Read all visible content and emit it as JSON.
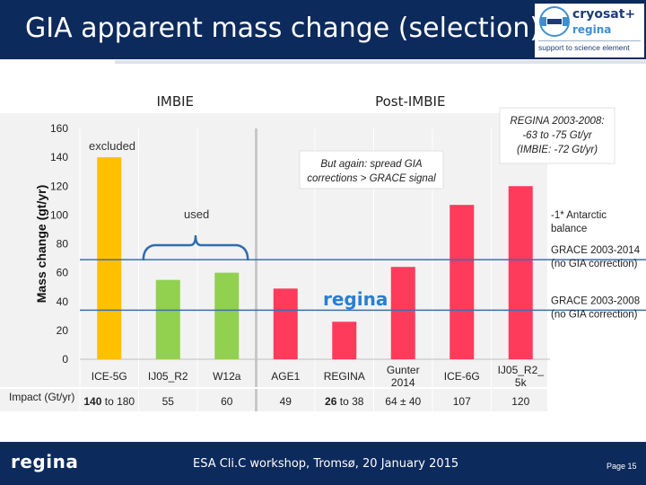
{
  "slide": {
    "title": "GIA apparent mass change (selection)",
    "logo": {
      "name": "cryosat+",
      "sub": "regina",
      "tagline": "support to science element"
    },
    "footer": {
      "logo": "regina",
      "text": "ESA Cli.C workshop, Tromsø, 20 January 2015",
      "page": "Page 15"
    }
  },
  "chart_data": {
    "type": "bar",
    "ylabel": "Mass change (gt/yr)",
    "ylim": [
      0,
      160
    ],
    "yticks": [
      0,
      20,
      40,
      60,
      80,
      100,
      120,
      140,
      160
    ],
    "sections": [
      {
        "label": "IMBIE",
        "from": 0,
        "to": 3
      },
      {
        "label": "Post-IMBIE",
        "from": 3,
        "to": 8
      }
    ],
    "categories": [
      {
        "label": "ICE-5G",
        "value": 140,
        "impact": "140 to 180",
        "group": "excluded",
        "color": "#ffc000"
      },
      {
        "label": "IJ05_R2",
        "value": 55,
        "impact": "55",
        "group": "used",
        "color": "#92d050"
      },
      {
        "label": "W12a",
        "value": 60,
        "impact": "60",
        "group": "used",
        "color": "#92d050"
      },
      {
        "label": "AGE1",
        "value": 49,
        "impact": "49",
        "group": "post",
        "color": "#ff3b5c"
      },
      {
        "label": "REGINA",
        "value": 26,
        "impact": "26 to 38",
        "group": "post",
        "color": "#ff3b5c"
      },
      {
        "label": "Gunter 2014",
        "label_lines": [
          "Gunter",
          "2014"
        ],
        "value": 64,
        "impact": "64 ± 40",
        "group": "post",
        "color": "#ff3b5c"
      },
      {
        "label": "ICE-6G",
        "value": 107,
        "impact": "107",
        "group": "post",
        "color": "#ff3b5c"
      },
      {
        "label": "IJ05_R2_5k",
        "label_lines": [
          "IJ05_R2_",
          "5k"
        ],
        "value": 120,
        "impact": "120",
        "group": "post",
        "color": "#ff3b5c"
      }
    ],
    "impact_label": "Impact (Gt/yr)",
    "reference_lines": [
      {
        "value": 69,
        "label_lines": [
          "GRACE 2003-2014",
          "(no GIA correction)"
        ],
        "color": "#3a6fb0"
      },
      {
        "value": 34,
        "label_lines": [
          "GRACE 2003-2008",
          "(no GIA correction)"
        ],
        "color": "#3a6fb0"
      }
    ],
    "annotations": {
      "excluded": "excluded",
      "used": "used",
      "spread": [
        "But again: spread GIA",
        "corrections > GRACE signal"
      ],
      "regina_box": [
        "REGINA 2003-2008:",
        "-63 to -75 Gt/yr",
        "(IMBIE: -72 Gt/yr)"
      ],
      "antarctic": [
        "-1* Antarctic",
        "balance"
      ],
      "watermark": "regina"
    }
  }
}
